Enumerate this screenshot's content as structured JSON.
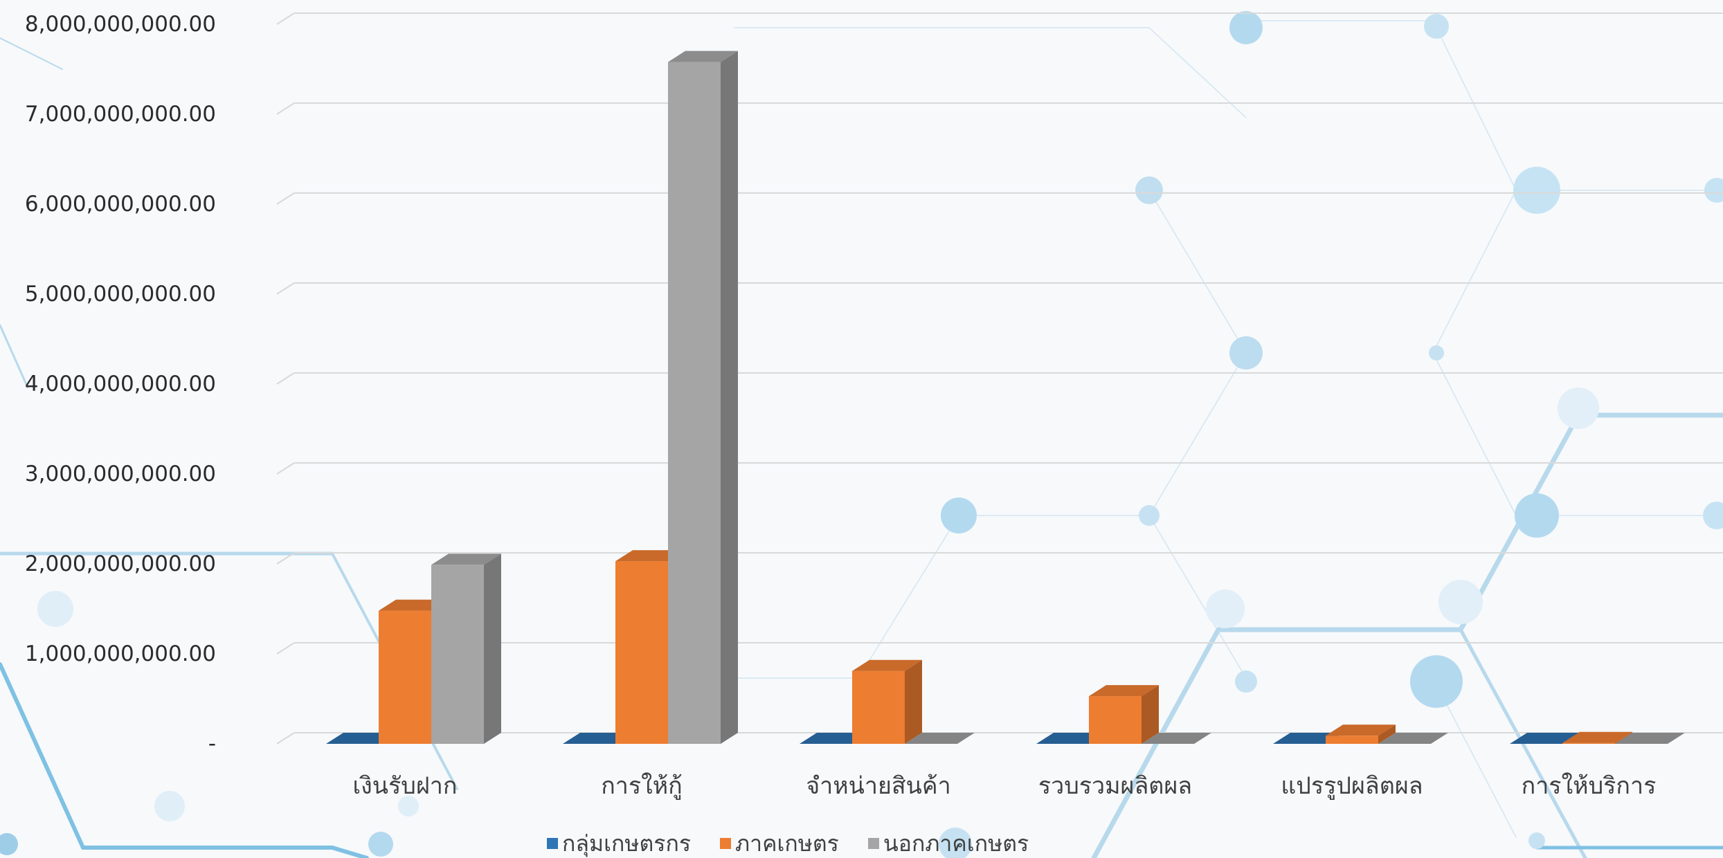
{
  "chart_data": {
    "type": "bar",
    "style": "3d-column",
    "categories": [
      "เงินรับฝาก",
      "การให้กู้",
      "จำหน่ายสินค้า",
      "รวบรวมผลิตผล",
      "แปรรูปผลิตผล",
      "การให้บริการ"
    ],
    "series": [
      {
        "name": "กลุ่มเกษตรกร",
        "color": "#2e75b6",
        "values": [
          0,
          0,
          0,
          0,
          0,
          0
        ]
      },
      {
        "name": "ภาคเกษตร",
        "color": "#ed7d31",
        "values": [
          1480000000,
          2030000000,
          810000000,
          530000000,
          90000000,
          10000000
        ]
      },
      {
        "name": "นอกภาคเกษตร",
        "color": "#a5a5a5",
        "values": [
          1990000000,
          7580000000,
          0,
          0,
          0,
          0
        ]
      }
    ],
    "y_tick_labels": [
      "-",
      "1,000,000,000.00",
      "2,000,000,000.00",
      "3,000,000,000.00",
      "4,000,000,000.00",
      "5,000,000,000.00",
      "6,000,000,000.00",
      "7,000,000,000.00",
      "8,000,000,000.00"
    ],
    "ylim": [
      0,
      8000000000
    ],
    "grid": true,
    "legend_position": "bottom",
    "title": "",
    "xlabel": "",
    "ylabel": ""
  }
}
